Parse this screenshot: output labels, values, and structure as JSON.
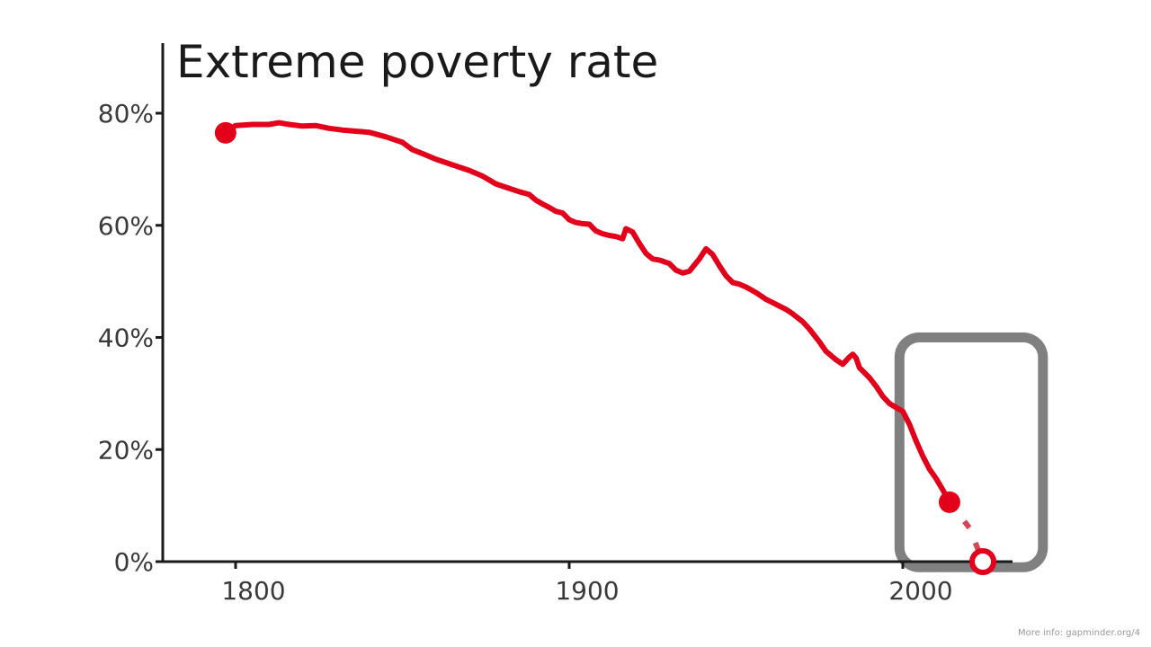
{
  "chart_data": {
    "type": "line",
    "title": "Extreme poverty rate",
    "xlabel": "",
    "ylabel": "",
    "xlim": [
      1775,
      2040
    ],
    "ylim": [
      0,
      90
    ],
    "x_ticks": [
      1800,
      1900,
      2000
    ],
    "x_tick_labels": [
      "1800",
      "1900",
      "2000"
    ],
    "y_ticks": [
      0,
      20,
      40,
      60,
      80
    ],
    "y_tick_labels": [
      "0%",
      "20%",
      "40%",
      "60%",
      "80%"
    ],
    "grid": false,
    "colors": {
      "line": "#e2001a",
      "projection": "#d64552",
      "highlight_box": "#808080",
      "axis": "#1a1a1a"
    },
    "series": [
      {
        "x": [
          1797,
          1800,
          1805,
          1810,
          1813,
          1816,
          1820,
          1824,
          1828,
          1832,
          1836,
          1840,
          1845,
          1850,
          1853,
          1856,
          1860,
          1865,
          1870,
          1874,
          1878,
          1882,
          1885,
          1888,
          1890,
          1892,
          1894,
          1896,
          1898,
          1900,
          1902,
          1904,
          1906,
          1908,
          1910,
          1912,
          1914,
          1916,
          1917,
          1919,
          1921,
          1923,
          1925,
          1927,
          1930,
          1932,
          1934,
          1936,
          1939,
          1941,
          1943,
          1945,
          1947,
          1949,
          1951,
          1953,
          1956,
          1959,
          1961,
          1963,
          1965,
          1967,
          1970,
          1972,
          1975,
          1977,
          1980,
          1982,
          1984,
          1985,
          1986,
          1987,
          1988,
          1990,
          1992,
          1994,
          1996,
          1998,
          2000,
          2002,
          2004,
          2006,
          2008,
          2010,
          2012,
          2014
        ],
        "y": [
          76.5,
          77.8,
          78.0,
          78.0,
          78.3,
          78.0,
          77.7,
          77.8,
          77.3,
          77.0,
          76.8,
          76.6,
          75.8,
          74.8,
          73.5,
          72.8,
          71.8,
          70.8,
          69.8,
          68.8,
          67.4,
          66.6,
          66.0,
          65.5,
          64.5,
          63.8,
          63.2,
          62.5,
          62.2,
          61.0,
          60.5,
          60.3,
          60.2,
          59.0,
          58.5,
          58.2,
          58.0,
          57.6,
          59.4,
          58.8,
          56.8,
          55.0,
          54.0,
          53.8,
          53.2,
          52.0,
          51.5,
          51.8,
          54.0,
          55.8,
          54.8,
          52.8,
          51.0,
          49.8,
          49.5,
          49.0,
          48.0,
          46.8,
          46.2,
          45.6,
          45.0,
          44.2,
          42.8,
          41.5,
          39.2,
          37.5,
          36.0,
          35.2,
          36.5,
          37.0,
          36.3,
          34.6,
          34.0,
          32.8,
          31.3,
          29.5,
          28.2,
          27.5,
          26.8,
          24.5,
          21.5,
          18.8,
          16.5,
          14.8,
          12.8,
          10.6
        ]
      }
    ],
    "start_point": {
      "x": 1797,
      "y": 76.5
    },
    "end_point": {
      "x": 2014,
      "y": 10.6
    },
    "projection": {
      "x": [
        2014,
        2020,
        2024
      ],
      "y": [
        10.6,
        6.0,
        0.0
      ]
    },
    "projection_point": {
      "x": 2024,
      "y": 0.0
    },
    "highlight_region": {
      "x": [
        1999,
        2042
      ],
      "y": [
        -1,
        40
      ]
    }
  },
  "footer": "More info: gapminder.org/4"
}
